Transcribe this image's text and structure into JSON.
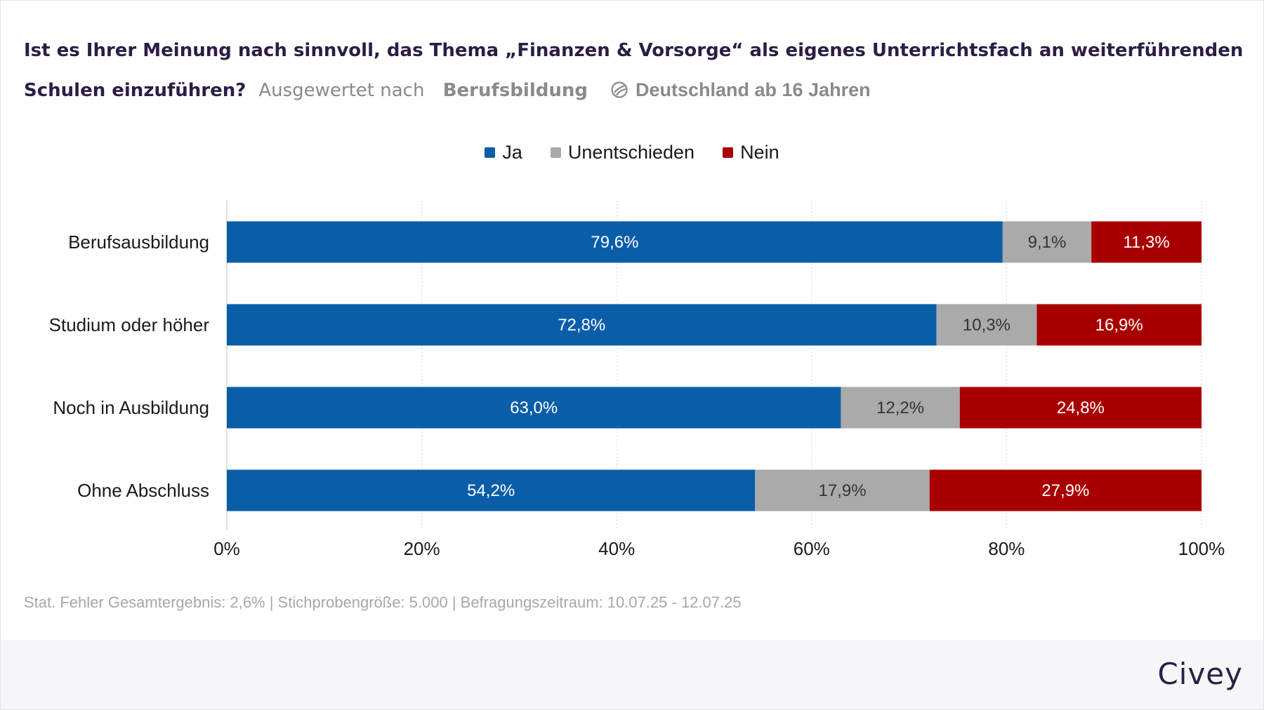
{
  "header": {
    "title": "Ist es Ihrer Meinung nach sinnvoll, das Thema „Finanzen & Vorsorge“ als eigenes Unterrichtsfach an weiterführenden Schulen einzuführen?",
    "evaluated_by_label": "Ausgewertet nach",
    "evaluated_by_value": "Berufsbildung",
    "region_icon": "globe-icon",
    "region": "Deutschland ab 16 Jahren"
  },
  "colors": {
    "ja": "#0a5ea8",
    "unentschieden": "#aaaaaa",
    "nein": "#a80000",
    "grid": "#d9d9d9"
  },
  "chart_data": {
    "type": "bar",
    "orientation": "horizontal",
    "stacked": true,
    "categories": [
      "Berufsausbildung",
      "Studium oder höher",
      "Noch in Ausbildung",
      "Ohne Abschluss"
    ],
    "series": [
      {
        "name": "Ja",
        "values": [
          79.6,
          72.8,
          63.0,
          54.2
        ],
        "labels": [
          "79,6%",
          "72,8%",
          "63,0%",
          "54,2%"
        ]
      },
      {
        "name": "Unentschieden",
        "values": [
          9.1,
          10.3,
          12.2,
          17.9
        ],
        "labels": [
          "9,1%",
          "10,3%",
          "12,2%",
          "17,9%"
        ]
      },
      {
        "name": "Nein",
        "values": [
          11.3,
          16.9,
          24.8,
          27.9
        ],
        "labels": [
          "11,3%",
          "16,9%",
          "24,8%",
          "27,9%"
        ]
      }
    ],
    "xlim": [
      0,
      100
    ],
    "x_ticks": [
      "0%",
      "20%",
      "40%",
      "60%",
      "80%",
      "100%"
    ],
    "grid": true,
    "legend_position": "top-center"
  },
  "footnote": "Stat. Fehler Gesamtergebnis: 2,6% | Stichprobengröße: 5.000 | Befragungszeitraum: 10.07.25 - 12.07.25",
  "brand": "Civey"
}
